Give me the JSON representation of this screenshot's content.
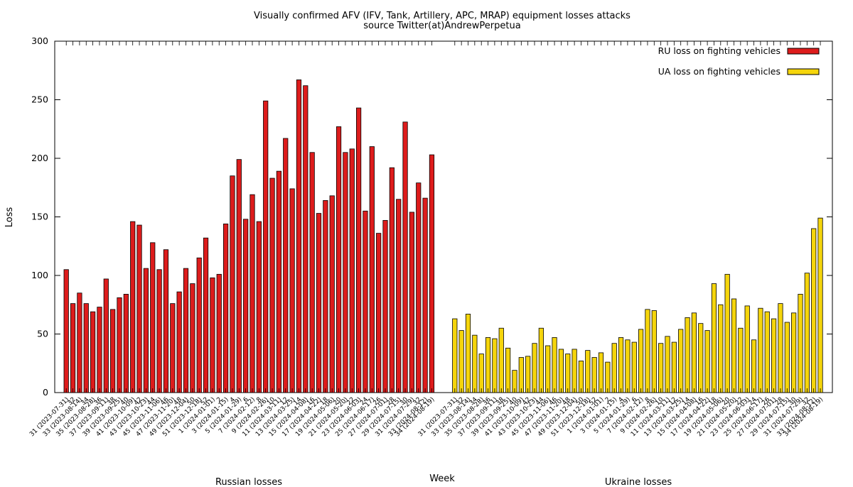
{
  "chart_data": {
    "type": "bar",
    "title": "Visually confirmed AFV (IFV, Tank, Artillery, APC, MRAP) equipment losses attacks",
    "subtitle": "source Twitter(at)AndrewPerpetua",
    "xlabel": "Week",
    "ylabel": "Loss",
    "ylim": [
      0,
      300
    ],
    "yticks": [
      0,
      50,
      100,
      150,
      200,
      250,
      300
    ],
    "grid": false,
    "legend_position": "top-right",
    "group_labels": [
      "Russian losses",
      "Ukraine losses"
    ],
    "categories": [
      "31 (2023-07-31)",
      "32",
      "33 (2023-08-14)",
      "34",
      "35 (2023-08-28)",
      "36",
      "37 (2023-09-11)",
      "38",
      "39 (2023-09-25)",
      "40",
      "41 (2023-10-09)",
      "42",
      "43 (2023-10-23)",
      "44",
      "45 (2023-11-06)",
      "46",
      "47 (2023-11-20)",
      "48",
      "49 (2023-12-04)",
      "50",
      "51 (2023-12-18)",
      "52",
      "1 (2024-01-01)",
      "2",
      "3 (2024-01-15)",
      "4",
      "5 (2024-01-29)",
      "6",
      "7 (2024-02-12)",
      "8",
      "9 (2024-02-26)",
      "10",
      "11 (2024-03-11)",
      "12",
      "13 (2024-03-25)",
      "14",
      "15 (2024-04-08)",
      "16",
      "17 (2024-04-22)",
      "18",
      "19 (2024-05-06)",
      "20",
      "21 (2024-05-20)",
      "22",
      "23 (2024-06-03)",
      "24",
      "25 (2024-06-17)",
      "26",
      "27 (2024-07-01)",
      "28",
      "29 (2024-07-15)",
      "30",
      "31 (2024-07-29)",
      "32",
      "33 (2024-08-12)",
      "34 (2024-08-19)"
    ],
    "series": [
      {
        "name": "RU loss on fighting vehicles",
        "color": "#dd1c1c",
        "values": [
          105,
          76,
          85,
          76,
          69,
          73,
          97,
          71,
          81,
          84,
          146,
          143,
          106,
          128,
          105,
          122,
          76,
          86,
          106,
          93,
          115,
          132,
          98,
          101,
          144,
          185,
          199,
          148,
          169,
          146,
          249,
          183,
          189,
          217,
          174,
          267,
          262,
          205,
          153,
          164,
          168,
          227,
          205,
          208,
          243,
          155,
          210,
          136,
          147,
          192,
          165,
          231,
          154,
          179,
          166,
          203
        ]
      },
      {
        "name": "UA loss on fighting vehicles",
        "color": "#f5d50c",
        "values": [
          63,
          53,
          67,
          49,
          33,
          47,
          46,
          55,
          38,
          19,
          30,
          31,
          42,
          55,
          40,
          47,
          37,
          33,
          37,
          27,
          36,
          30,
          34,
          26,
          42,
          47,
          45,
          43,
          54,
          71,
          70,
          42,
          48,
          43,
          54,
          64,
          68,
          59,
          53,
          93,
          75,
          101,
          80,
          55,
          74,
          45,
          72,
          69,
          63,
          76,
          60,
          68,
          84,
          102,
          140,
          149
        ]
      }
    ]
  }
}
